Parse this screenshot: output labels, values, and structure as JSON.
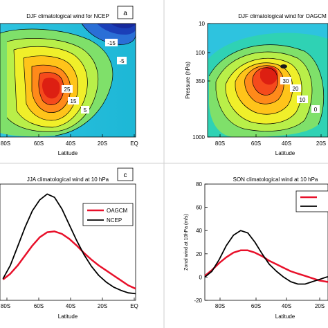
{
  "chart_data": [
    {
      "id": "a",
      "type": "contour",
      "title": "DJF climatological wind for NCEP",
      "panel_label": "a",
      "xlabel": "Latitude",
      "ylabel": "",
      "x_ticks": [
        "80S",
        "60S",
        "40S",
        "20S",
        "EQ"
      ],
      "y_ticks": [],
      "contour_labels": [
        "-15",
        "-5",
        "25",
        "15",
        "5"
      ]
    },
    {
      "id": "b",
      "type": "contour",
      "title": "DJF climatological wind for OAGCM",
      "panel_label": "",
      "xlabel": "Latitude",
      "ylabel": "Pressure (hPa)",
      "x_ticks": [
        "80S",
        "60S",
        "40S",
        "20S"
      ],
      "y_ticks": [
        "10",
        "100",
        "350",
        "1000"
      ],
      "contour_labels": [
        "30",
        "20",
        "10",
        "0"
      ]
    },
    {
      "id": "c",
      "type": "line",
      "title": "JJA climatological wind at 10 hPa",
      "panel_label": "c",
      "xlabel": "Latitude",
      "ylabel": "",
      "x_ticks": [
        "80S",
        "60S",
        "40S",
        "20S",
        "EQ"
      ],
      "x": [
        -90,
        -85,
        -80,
        -75,
        -70,
        -65,
        -60,
        -55,
        -50,
        -45,
        -40,
        -35,
        -30,
        -25,
        -20,
        -15,
        -10,
        -5,
        0
      ],
      "series": [
        {
          "name": "OAGCM",
          "color": "#e8102a",
          "values": [
            5,
            12,
            22,
            34,
            46,
            56,
            62,
            63,
            60,
            54,
            46,
            37,
            29,
            22,
            16,
            10,
            4,
            -2,
            -6
          ]
        },
        {
          "name": "NCEP",
          "color": "#000000",
          "values": [
            6,
            22,
            45,
            68,
            88,
            101,
            108,
            104,
            90,
            71,
            52,
            35,
            21,
            10,
            2,
            -4,
            -8,
            -11,
            -12
          ]
        }
      ],
      "legend": "top-right"
    },
    {
      "id": "d",
      "type": "line",
      "title": "SON climatological wind at 10 hPa",
      "panel_label": "",
      "xlabel": "Latitude",
      "ylabel": "Zonal wind at 10hPa (m/s)",
      "x_ticks": [
        "80S",
        "60S",
        "40S",
        "20S"
      ],
      "y_ticks": [
        "80",
        "60",
        "40",
        "20",
        "0",
        "-20"
      ],
      "ylim": [
        -20,
        80
      ],
      "x": [
        -90,
        -85,
        -80,
        -75,
        -70,
        -65,
        -60,
        -55,
        -50,
        -45,
        -40,
        -35,
        -30,
        -25,
        -20,
        -15,
        -10,
        -5,
        0
      ],
      "series": [
        {
          "name": "",
          "color": "#e8102a",
          "values": [
            1,
            6,
            12,
            17,
            21,
            23,
            23,
            21,
            18,
            14,
            11,
            8,
            5,
            3,
            1,
            -1,
            -3,
            -4,
            -5
          ]
        },
        {
          "name": "",
          "color": "#000000",
          "values": [
            0,
            5,
            15,
            27,
            36,
            40,
            38,
            30,
            20,
            11,
            5,
            0,
            -4,
            -6,
            -6,
            -4,
            -2,
            0,
            1
          ]
        }
      ],
      "legend": "top-right"
    }
  ]
}
